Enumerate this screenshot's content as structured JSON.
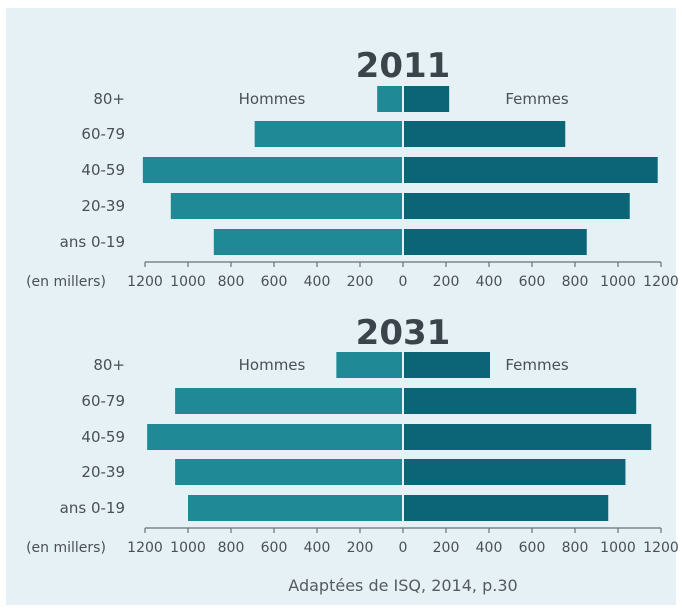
{
  "chart_data": [
    {
      "type": "bar",
      "title": "2011",
      "categories": [
        "80+",
        "60-79",
        "40-59",
        "20-39",
        "ans 0-19"
      ],
      "series": [
        {
          "name": "Hommes",
          "values": [
            120,
            690,
            1210,
            1080,
            880
          ]
        },
        {
          "name": "Femmes",
          "values": [
            210,
            750,
            1180,
            1050,
            850
          ]
        }
      ],
      "unit_label": "(en millers)",
      "x_ticks": [
        "1200",
        "1000",
        "800",
        "600",
        "400",
        "200",
        "0",
        "200",
        "400",
        "600",
        "800",
        "1000",
        "1200"
      ],
      "xlim": [
        -1200,
        1200
      ],
      "colors": {
        "Hommes": "#1f8a96",
        "Femmes": "#0b6577"
      }
    },
    {
      "type": "bar",
      "title": "2031",
      "categories": [
        "80+",
        "60-79",
        "40-59",
        "20-39",
        "ans 0-19"
      ],
      "series": [
        {
          "name": "Hommes",
          "values": [
            310,
            1060,
            1190,
            1060,
            1000
          ]
        },
        {
          "name": "Femmes",
          "values": [
            400,
            1080,
            1150,
            1030,
            950
          ]
        }
      ],
      "unit_label": "(en millers)",
      "x_ticks": [
        "1200",
        "1000",
        "800",
        "600",
        "400",
        "200",
        "0",
        "200",
        "400",
        "600",
        "800",
        "1000",
        "1200"
      ],
      "xlim": [
        -1200,
        1200
      ],
      "colors": {
        "Hommes": "#1f8a96",
        "Femmes": "#0b6577"
      }
    }
  ],
  "source": "Adaptées de ISQ, 2014, p.30"
}
